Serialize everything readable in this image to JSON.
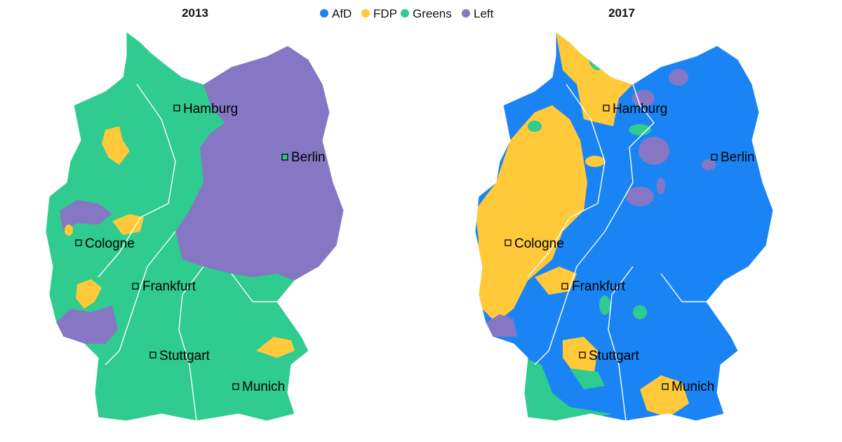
{
  "legend": [
    {
      "name": "AfD",
      "color": "#1a84f5"
    },
    {
      "name": "FDP",
      "color": "#ffc93a"
    },
    {
      "name": "Greens",
      "color": "#2fcb8f"
    },
    {
      "name": "Left",
      "color": "#8577c3"
    }
  ],
  "maps": [
    {
      "title": "2013",
      "cities": [
        "Hamburg",
        "Berlin",
        "Cologne",
        "Frankfurt",
        "Stuttgart",
        "Munich"
      ]
    },
    {
      "title": "2017",
      "cities": [
        "Hamburg",
        "Berlin",
        "Cologne",
        "Frankfurt",
        "Stuttgart",
        "Munich"
      ]
    }
  ]
}
